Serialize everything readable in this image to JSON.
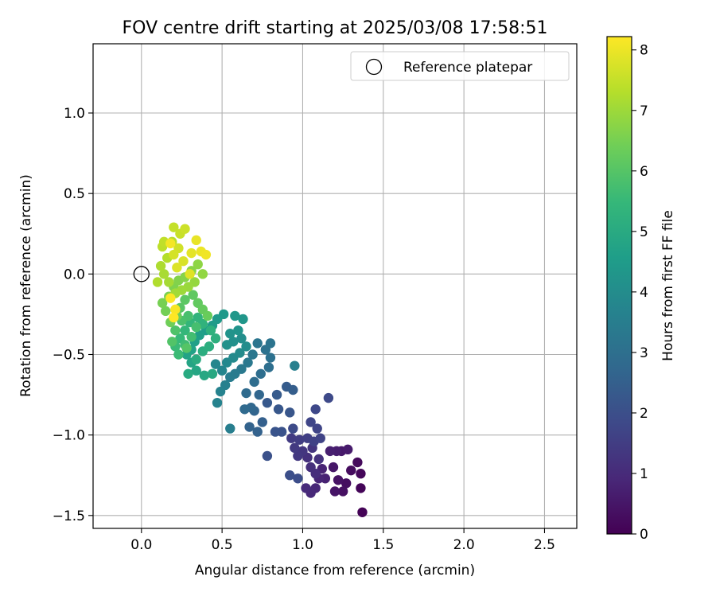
{
  "chart_data": {
    "type": "scatter",
    "title": "FOV centre drift starting at 2025/03/08 17:58:51",
    "xlabel": "Angular distance from reference (arcmin)",
    "ylabel": "Rotation from reference (arcmin)",
    "xlim": [
      -0.3,
      2.7
    ],
    "ylim": [
      -1.58,
      1.43
    ],
    "x_ticks": [
      0.0,
      0.5,
      1.0,
      1.5,
      2.0,
      2.5
    ],
    "x_tick_labels": [
      "0.0",
      "0.5",
      "1.0",
      "1.5",
      "2.0",
      "2.5"
    ],
    "y_ticks": [
      -1.5,
      -1.0,
      -0.5,
      0.0,
      0.5,
      1.0
    ],
    "y_tick_labels": [
      "−1.5",
      "−1.0",
      "−0.5",
      "0.0",
      "0.5",
      "1.0"
    ],
    "grid": true,
    "legend": {
      "position": "top-right",
      "entries": [
        "Reference platepar"
      ]
    },
    "reference_point": {
      "name": "Reference platepar",
      "x": 0.0,
      "y": 0.0
    },
    "colorbar": {
      "label": "Hours from first FF file",
      "range": [
        0,
        8.22
      ],
      "ticks": [
        0,
        1,
        2,
        3,
        4,
        5,
        6,
        7,
        8
      ],
      "tick_labels": [
        "0",
        "1",
        "2",
        "3",
        "4",
        "5",
        "6",
        "7",
        "8"
      ],
      "colormap": [
        "#440154",
        "#482878",
        "#3e4989",
        "#31688e",
        "#26828e",
        "#1f9e89",
        "#35b779",
        "#6ece58",
        "#b5de2b",
        "#fde725"
      ]
    },
    "series": [
      {
        "value_key": [
          "x",
          "y",
          "hours"
        ],
        "points": [
          [
            1.37,
            -1.48,
            0.05
          ],
          [
            1.36,
            -1.33,
            0.1
          ],
          [
            1.36,
            -1.24,
            0.15
          ],
          [
            1.34,
            -1.17,
            0.2
          ],
          [
            1.3,
            -1.22,
            0.25
          ],
          [
            1.27,
            -1.3,
            0.3
          ],
          [
            1.25,
            -1.35,
            0.35
          ],
          [
            1.22,
            -1.28,
            0.4
          ],
          [
            1.2,
            -1.35,
            0.45
          ],
          [
            1.19,
            -1.2,
            0.5
          ],
          [
            1.24,
            -1.1,
            0.55
          ],
          [
            1.28,
            -1.09,
            0.6
          ],
          [
            1.21,
            -1.1,
            0.65
          ],
          [
            1.17,
            -1.1,
            0.7
          ],
          [
            1.14,
            -1.27,
            0.75
          ],
          [
            1.12,
            -1.21,
            0.8
          ],
          [
            1.1,
            -1.27,
            0.85
          ],
          [
            1.08,
            -1.33,
            0.9
          ],
          [
            1.05,
            -1.36,
            0.95
          ],
          [
            1.02,
            -1.33,
            1.0
          ],
          [
            1.08,
            -1.24,
            1.05
          ],
          [
            1.05,
            -1.2,
            1.1
          ],
          [
            1.03,
            -1.14,
            1.15
          ],
          [
            1.1,
            -1.15,
            1.2
          ],
          [
            1.06,
            -1.08,
            1.25
          ],
          [
            1.0,
            -1.1,
            1.3
          ],
          [
            0.97,
            -1.13,
            1.35
          ],
          [
            0.95,
            -1.08,
            1.4
          ],
          [
            0.93,
            -1.02,
            1.45
          ],
          [
            0.98,
            -1.03,
            1.5
          ],
          [
            1.03,
            -1.02,
            1.55
          ],
          [
            1.07,
            -1.04,
            1.6
          ],
          [
            1.11,
            -1.02,
            1.65
          ],
          [
            1.09,
            -0.96,
            1.7
          ],
          [
            1.05,
            -0.92,
            1.75
          ],
          [
            1.08,
            -0.84,
            1.8
          ],
          [
            1.16,
            -0.77,
            1.85
          ],
          [
            0.94,
            -0.96,
            1.9
          ],
          [
            0.92,
            -1.25,
            2.0
          ],
          [
            0.97,
            -1.27,
            1.95
          ],
          [
            0.78,
            -1.13,
            2.05
          ],
          [
            0.87,
            -0.98,
            2.1
          ],
          [
            0.83,
            -0.98,
            2.15
          ],
          [
            0.92,
            -0.86,
            2.2
          ],
          [
            0.85,
            -0.84,
            2.25
          ],
          [
            0.78,
            -0.8,
            2.3
          ],
          [
            0.84,
            -0.75,
            2.35
          ],
          [
            0.9,
            -0.7,
            2.4
          ],
          [
            0.94,
            -0.72,
            2.45
          ],
          [
            0.75,
            -0.92,
            2.5
          ],
          [
            0.72,
            -0.98,
            2.55
          ],
          [
            0.67,
            -0.95,
            2.6
          ],
          [
            0.7,
            -0.85,
            2.65
          ],
          [
            0.73,
            -0.75,
            2.7
          ],
          [
            0.68,
            -0.83,
            2.75
          ],
          [
            0.64,
            -0.84,
            2.8
          ],
          [
            0.65,
            -0.74,
            2.85
          ],
          [
            0.7,
            -0.67,
            2.9
          ],
          [
            0.74,
            -0.62,
            2.95
          ],
          [
            0.79,
            -0.58,
            3.0
          ],
          [
            0.8,
            -0.52,
            3.05
          ],
          [
            0.77,
            -0.47,
            3.1
          ],
          [
            0.8,
            -0.43,
            3.15
          ],
          [
            0.72,
            -0.43,
            3.2
          ],
          [
            0.69,
            -0.5,
            3.25
          ],
          [
            0.66,
            -0.55,
            3.3
          ],
          [
            0.62,
            -0.59,
            3.35
          ],
          [
            0.58,
            -0.62,
            3.4
          ],
          [
            0.55,
            -0.64,
            3.45
          ],
          [
            0.55,
            -0.96,
            3.5
          ],
          [
            0.95,
            -0.57,
            3.55
          ],
          [
            0.52,
            -0.69,
            3.6
          ],
          [
            0.49,
            -0.73,
            3.65
          ],
          [
            0.47,
            -0.8,
            3.7
          ],
          [
            0.5,
            -0.6,
            3.75
          ],
          [
            0.46,
            -0.56,
            3.8
          ],
          [
            0.53,
            -0.55,
            3.85
          ],
          [
            0.57,
            -0.52,
            3.9
          ],
          [
            0.61,
            -0.49,
            3.95
          ],
          [
            0.65,
            -0.45,
            4.0
          ],
          [
            0.62,
            -0.4,
            4.05
          ],
          [
            0.57,
            -0.42,
            4.1
          ],
          [
            0.53,
            -0.44,
            4.15
          ],
          [
            0.55,
            -0.37,
            4.2
          ],
          [
            0.6,
            -0.35,
            4.25
          ],
          [
            0.63,
            -0.28,
            4.3
          ],
          [
            0.58,
            -0.26,
            4.35
          ],
          [
            0.51,
            -0.25,
            4.4
          ],
          [
            0.47,
            -0.28,
            4.45
          ],
          [
            0.44,
            -0.32,
            4.5
          ],
          [
            0.4,
            -0.35,
            4.55
          ],
          [
            0.36,
            -0.38,
            4.6
          ],
          [
            0.33,
            -0.42,
            4.65
          ],
          [
            0.31,
            -0.47,
            4.7
          ],
          [
            0.28,
            -0.5,
            4.75
          ],
          [
            0.31,
            -0.55,
            4.8
          ],
          [
            0.34,
            -0.6,
            4.85
          ],
          [
            0.39,
            -0.63,
            4.9
          ],
          [
            0.44,
            -0.62,
            4.95
          ],
          [
            0.29,
            -0.62,
            5.0
          ],
          [
            0.34,
            -0.53,
            5.05
          ],
          [
            0.38,
            -0.48,
            5.1
          ],
          [
            0.42,
            -0.45,
            5.15
          ],
          [
            0.46,
            -0.4,
            5.2
          ],
          [
            0.43,
            -0.35,
            5.25
          ],
          [
            0.38,
            -0.31,
            5.3
          ],
          [
            0.35,
            -0.27,
            5.35
          ],
          [
            0.3,
            -0.3,
            5.4
          ],
          [
            0.27,
            -0.35,
            5.45
          ],
          [
            0.24,
            -0.4,
            5.5
          ],
          [
            0.21,
            -0.45,
            5.55
          ],
          [
            0.23,
            -0.5,
            5.6
          ],
          [
            0.27,
            -0.44,
            5.65
          ],
          [
            0.31,
            -0.39,
            5.7
          ],
          [
            0.34,
            -0.33,
            5.75
          ],
          [
            0.29,
            -0.26,
            5.8
          ],
          [
            0.25,
            -0.29,
            5.85
          ],
          [
            0.21,
            -0.35,
            5.9
          ],
          [
            0.19,
            -0.42,
            5.95
          ],
          [
            0.28,
            -0.46,
            6.0
          ],
          [
            0.24,
            -0.21,
            6.05
          ],
          [
            0.27,
            -0.16,
            6.1
          ],
          [
            0.32,
            -0.13,
            6.15
          ],
          [
            0.35,
            -0.18,
            6.2
          ],
          [
            0.38,
            -0.22,
            6.25
          ],
          [
            0.41,
            -0.26,
            6.3
          ],
          [
            0.22,
            -0.26,
            6.35
          ],
          [
            0.18,
            -0.3,
            6.4
          ],
          [
            0.15,
            -0.23,
            6.45
          ],
          [
            0.13,
            -0.18,
            6.5
          ],
          [
            0.17,
            -0.14,
            6.55
          ],
          [
            0.2,
            -0.08,
            6.6
          ],
          [
            0.23,
            -0.04,
            6.65
          ],
          [
            0.27,
            -0.02,
            6.7
          ],
          [
            0.31,
            0.02,
            6.75
          ],
          [
            0.35,
            0.06,
            6.8
          ],
          [
            0.38,
            0.0,
            6.85
          ],
          [
            0.33,
            -0.05,
            6.9
          ],
          [
            0.29,
            -0.08,
            6.95
          ],
          [
            0.25,
            -0.1,
            7.0
          ],
          [
            0.21,
            -0.12,
            7.05
          ],
          [
            0.17,
            -0.05,
            7.1
          ],
          [
            0.14,
            0.0,
            7.15
          ],
          [
            0.12,
            0.05,
            7.2
          ],
          [
            0.1,
            -0.05,
            7.25
          ],
          [
            0.16,
            0.1,
            7.3
          ],
          [
            0.13,
            0.17,
            7.4
          ],
          [
            0.19,
            0.2,
            7.35
          ],
          [
            0.14,
            0.2,
            7.45
          ],
          [
            0.2,
            0.29,
            7.5
          ],
          [
            0.24,
            0.25,
            7.55
          ],
          [
            0.27,
            0.28,
            7.6
          ],
          [
            0.23,
            0.16,
            7.65
          ],
          [
            0.2,
            0.12,
            7.7
          ],
          [
            0.26,
            0.08,
            7.75
          ],
          [
            0.22,
            0.04,
            7.8
          ],
          [
            0.3,
            0.0,
            7.85
          ],
          [
            0.31,
            0.13,
            7.9
          ],
          [
            0.34,
            0.21,
            7.95
          ],
          [
            0.37,
            0.14,
            8.0
          ],
          [
            0.4,
            0.12,
            8.05
          ],
          [
            0.18,
            0.19,
            8.1
          ],
          [
            0.21,
            -0.22,
            8.15
          ],
          [
            0.18,
            -0.15,
            8.2
          ],
          [
            0.2,
            -0.27,
            8.22
          ]
        ]
      }
    ]
  }
}
